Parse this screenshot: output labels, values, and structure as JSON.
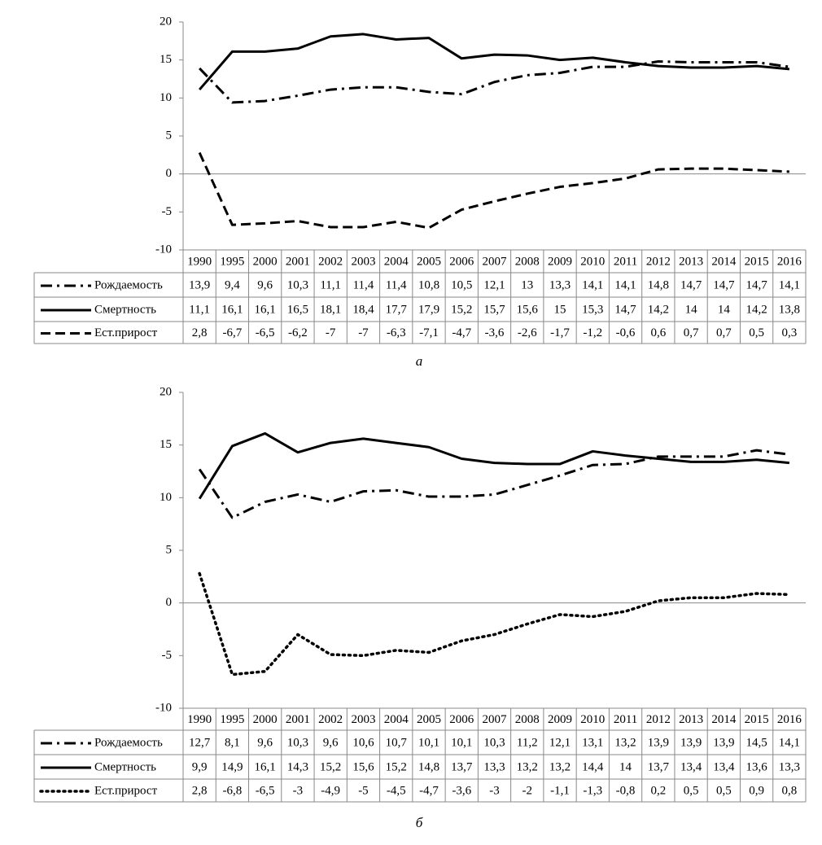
{
  "chart_data": [
    {
      "type": "line",
      "caption": "а",
      "categories": [
        "1990",
        "1995",
        "2000",
        "2001",
        "2002",
        "2003",
        "2004",
        "2005",
        "2006",
        "2007",
        "2008",
        "2009",
        "2010",
        "2011",
        "2012",
        "2013",
        "2014",
        "2015",
        "2016"
      ],
      "ylim": [
        -10,
        20
      ],
      "yticks": [
        -10,
        -5,
        0,
        5,
        10,
        15,
        20
      ],
      "series": [
        {
          "name": "Рождаемость",
          "color": "#000000",
          "dash": "dash-dot",
          "values": [
            13.9,
            9.4,
            9.6,
            10.3,
            11.1,
            11.4,
            11.4,
            10.8,
            10.5,
            12.1,
            13,
            13.3,
            14.1,
            14.1,
            14.8,
            14.7,
            14.7,
            14.7,
            14.1
          ],
          "value_labels": [
            "13,9",
            "9,4",
            "9,6",
            "10,3",
            "11,1",
            "11,4",
            "11,4",
            "10,8",
            "10,5",
            "12,1",
            "13",
            "13,3",
            "14,1",
            "14,1",
            "14,8",
            "14,7",
            "14,7",
            "14,7",
            "14,1"
          ]
        },
        {
          "name": "Смертность",
          "color": "#000000",
          "dash": "solid",
          "values": [
            11.1,
            16.1,
            16.1,
            16.5,
            18.1,
            18.4,
            17.7,
            17.9,
            15.2,
            15.7,
            15.6,
            15,
            15.3,
            14.7,
            14.2,
            14,
            14,
            14.2,
            13.8
          ],
          "value_labels": [
            "11,1",
            "16,1",
            "16,1",
            "16,5",
            "18,1",
            "18,4",
            "17,7",
            "17,9",
            "15,2",
            "15,7",
            "15,6",
            "15",
            "15,3",
            "14,7",
            "14,2",
            "14",
            "14",
            "14,2",
            "13,8"
          ]
        },
        {
          "name": "Ест.прирост",
          "color": "#000000",
          "dash": "dash",
          "values": [
            2.8,
            -6.7,
            -6.5,
            -6.2,
            -7,
            -7,
            -6.3,
            -7.1,
            -4.7,
            -3.6,
            -2.6,
            -1.7,
            -1.2,
            -0.6,
            0.6,
            0.7,
            0.7,
            0.5,
            0.3
          ],
          "value_labels": [
            "2,8",
            "-6,7",
            "-6,5",
            "-6,2",
            "-7",
            "-7",
            "-6,3",
            "-7,1",
            "-4,7",
            "-3,6",
            "-2,6",
            "-1,7",
            "-1,2",
            "-0,6",
            "0,6",
            "0,7",
            "0,7",
            "0,5",
            "0,3"
          ]
        }
      ]
    },
    {
      "type": "line",
      "caption": "б",
      "categories": [
        "1990",
        "1995",
        "2000",
        "2001",
        "2002",
        "2003",
        "2004",
        "2005",
        "2006",
        "2007",
        "2008",
        "2009",
        "2010",
        "2011",
        "2012",
        "2013",
        "2014",
        "2015",
        "2016"
      ],
      "ylim": [
        -10,
        20
      ],
      "yticks": [
        -10,
        -5,
        0,
        5,
        10,
        15,
        20
      ],
      "series": [
        {
          "name": "Рождаемость",
          "color": "#000000",
          "dash": "dash-dot",
          "values": [
            12.7,
            8.1,
            9.6,
            10.3,
            9.6,
            10.6,
            10.7,
            10.1,
            10.1,
            10.3,
            11.2,
            12.1,
            13.1,
            13.2,
            13.9,
            13.9,
            13.9,
            14.5,
            14.1
          ],
          "value_labels": [
            "12,7",
            "8,1",
            "9,6",
            "10,3",
            "9,6",
            "10,6",
            "10,7",
            "10,1",
            "10,1",
            "10,3",
            "11,2",
            "12,1",
            "13,1",
            "13,2",
            "13,9",
            "13,9",
            "13,9",
            "14,5",
            "14,1"
          ]
        },
        {
          "name": "Смертность",
          "color": "#000000",
          "dash": "solid",
          "values": [
            9.9,
            14.9,
            16.1,
            14.3,
            15.2,
            15.6,
            15.2,
            14.8,
            13.7,
            13.3,
            13.2,
            13.2,
            14.4,
            14,
            13.7,
            13.4,
            13.4,
            13.6,
            13.3
          ],
          "value_labels": [
            "9,9",
            "14,9",
            "16,1",
            "14,3",
            "15,2",
            "15,6",
            "15,2",
            "14,8",
            "13,7",
            "13,3",
            "13,2",
            "13,2",
            "14,4",
            "14",
            "13,7",
            "13,4",
            "13,4",
            "13,6",
            "13,3"
          ]
        },
        {
          "name": "Ест.прирост",
          "color": "#000000",
          "dash": "dot",
          "values": [
            2.8,
            -6.8,
            -6.5,
            -3,
            -4.9,
            -5,
            -4.5,
            -4.7,
            -3.6,
            -3,
            -2,
            -1.1,
            -1.3,
            -0.8,
            0.2,
            0.5,
            0.5,
            0.9,
            0.8
          ],
          "value_labels": [
            "2,8",
            "-6,8",
            "-6,5",
            "-3",
            "-4,9",
            "-5",
            "-4,5",
            "-4,7",
            "-3,6",
            "-3",
            "-2",
            "-1,1",
            "-1,3",
            "-0,8",
            "0,2",
            "0,5",
            "0,5",
            "0,9",
            "0,8"
          ]
        }
      ]
    }
  ]
}
